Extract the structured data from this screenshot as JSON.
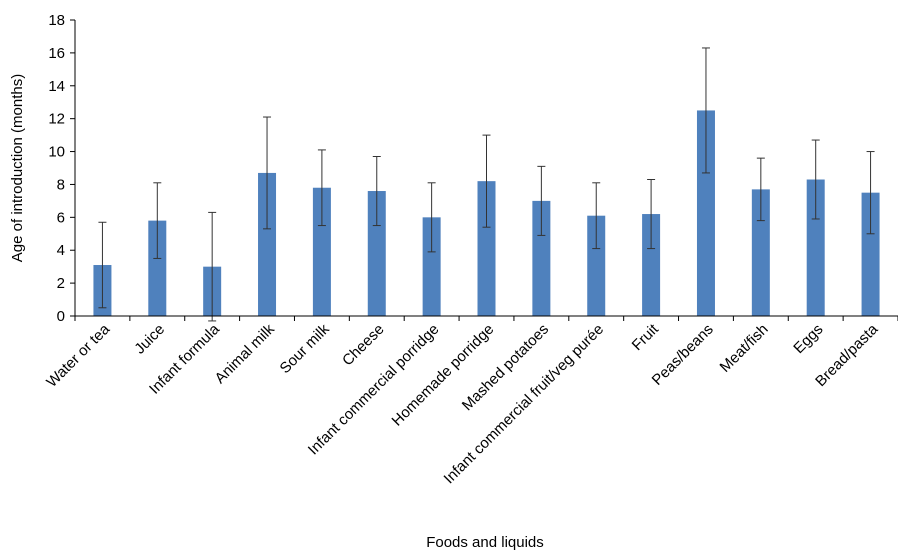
{
  "chart_data": {
    "type": "bar",
    "xlabel": "Foods and liquids",
    "ylabel": "Age of introduction (months)",
    "ylim": [
      0,
      18
    ],
    "yticks": [
      0,
      2,
      4,
      6,
      8,
      10,
      12,
      14,
      16,
      18
    ],
    "grid": false,
    "bar_color": "#4f81bd",
    "categories": [
      "Water or tea",
      "Juice",
      "Infant formula",
      "Animal milk",
      "Sour milk",
      "Cheese",
      "Infant commercial porridge",
      "Homemade porridge",
      "Mashed potatoes",
      "Infant commercial fruit/veg purée",
      "Fruit",
      "Peas/beans",
      "Meat/fish",
      "Eggs",
      "Bread/pasta"
    ],
    "values": [
      3.1,
      5.8,
      3.0,
      8.7,
      7.8,
      7.6,
      6.0,
      8.2,
      7.0,
      6.1,
      6.2,
      12.5,
      7.7,
      8.3,
      7.5
    ],
    "errors": [
      2.6,
      2.3,
      3.3,
      3.4,
      2.3,
      2.1,
      2.1,
      2.8,
      2.1,
      2.0,
      2.1,
      3.8,
      1.9,
      2.4,
      2.5
    ]
  }
}
